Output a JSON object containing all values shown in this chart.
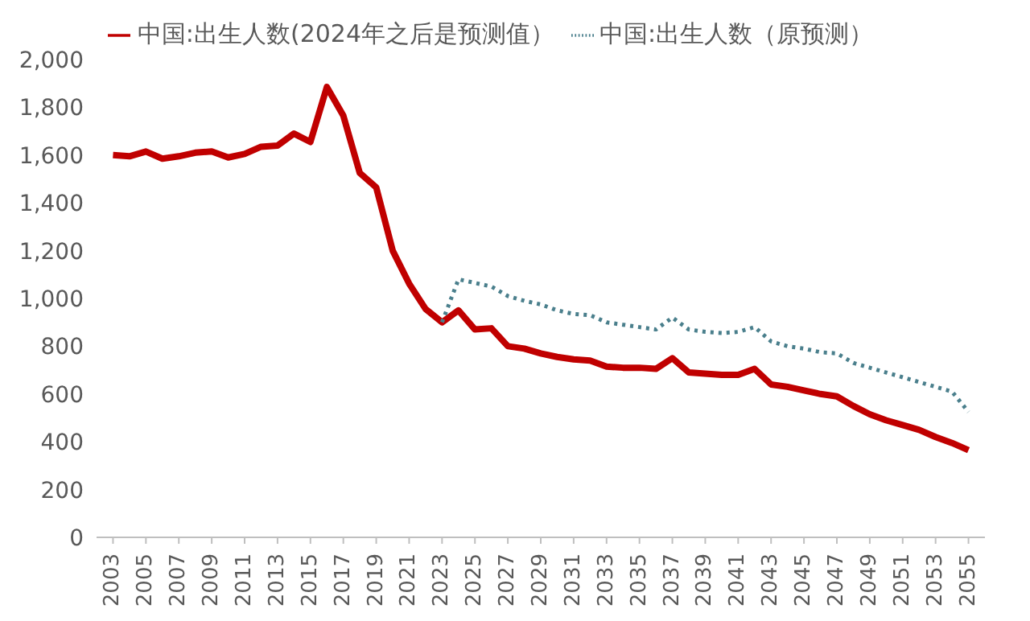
{
  "chart_data": {
    "type": "line",
    "legend": "top",
    "grid": false,
    "marker": "none",
    "x": [
      2003,
      2004,
      2005,
      2006,
      2007,
      2008,
      2009,
      2010,
      2011,
      2012,
      2013,
      2014,
      2015,
      2016,
      2017,
      2018,
      2019,
      2020,
      2021,
      2022,
      2023,
      2024,
      2025,
      2026,
      2027,
      2028,
      2029,
      2030,
      2031,
      2032,
      2033,
      2034,
      2035,
      2036,
      2037,
      2038,
      2039,
      2040,
      2041,
      2042,
      2043,
      2044,
      2045,
      2046,
      2047,
      2048,
      2049,
      2050,
      2051,
      2052,
      2053,
      2054,
      2055
    ],
    "series": [
      {
        "name": "中国:出生人数(2024年之后是预测值）",
        "color": "#c00000",
        "line_style": "solid",
        "values": [
          1600,
          1595,
          1615,
          1585,
          1595,
          1610,
          1615,
          1590,
          1605,
          1635,
          1640,
          1690,
          1655,
          1885,
          1765,
          1525,
          1465,
          1200,
          1062,
          956,
          900,
          950,
          870,
          875,
          800,
          790,
          770,
          755,
          745,
          740,
          715,
          710,
          710,
          705,
          750,
          690,
          685,
          680,
          680,
          705,
          640,
          630,
          615,
          600,
          590,
          550,
          515,
          490,
          470,
          450,
          420,
          395,
          365
        ]
      },
      {
        "name": "中国:出生人数（原预测）",
        "color": "#4a7f8c",
        "line_style": "dotted",
        "values": [
          null,
          null,
          null,
          null,
          null,
          null,
          null,
          null,
          null,
          null,
          null,
          null,
          null,
          null,
          null,
          null,
          null,
          null,
          null,
          null,
          900,
          1080,
          1065,
          1050,
          1010,
          990,
          975,
          950,
          935,
          930,
          900,
          890,
          880,
          870,
          920,
          870,
          860,
          855,
          860,
          880,
          820,
          800,
          790,
          775,
          770,
          730,
          710,
          690,
          670,
          650,
          630,
          610,
          525
        ]
      }
    ],
    "xlim": [
      2002,
      2056
    ],
    "xticks": [
      2003,
      2005,
      2007,
      2009,
      2011,
      2013,
      2015,
      2017,
      2019,
      2021,
      2023,
      2025,
      2027,
      2029,
      2031,
      2033,
      2035,
      2037,
      2039,
      2041,
      2043,
      2045,
      2047,
      2049,
      2051,
      2053,
      2055
    ],
    "ylim": [
      0,
      2000
    ],
    "yticks": [
      0,
      200,
      400,
      600,
      800,
      {
        "value": 1000,
        "label": "1,000"
      },
      {
        "value": 1200,
        "label": "1,200"
      },
      {
        "value": 1400,
        "label": "1,400"
      },
      {
        "value": 1600,
        "label": "1,600"
      },
      {
        "value": 1800,
        "label": "1,800"
      },
      {
        "value": 2000,
        "label": "2,000"
      }
    ]
  }
}
